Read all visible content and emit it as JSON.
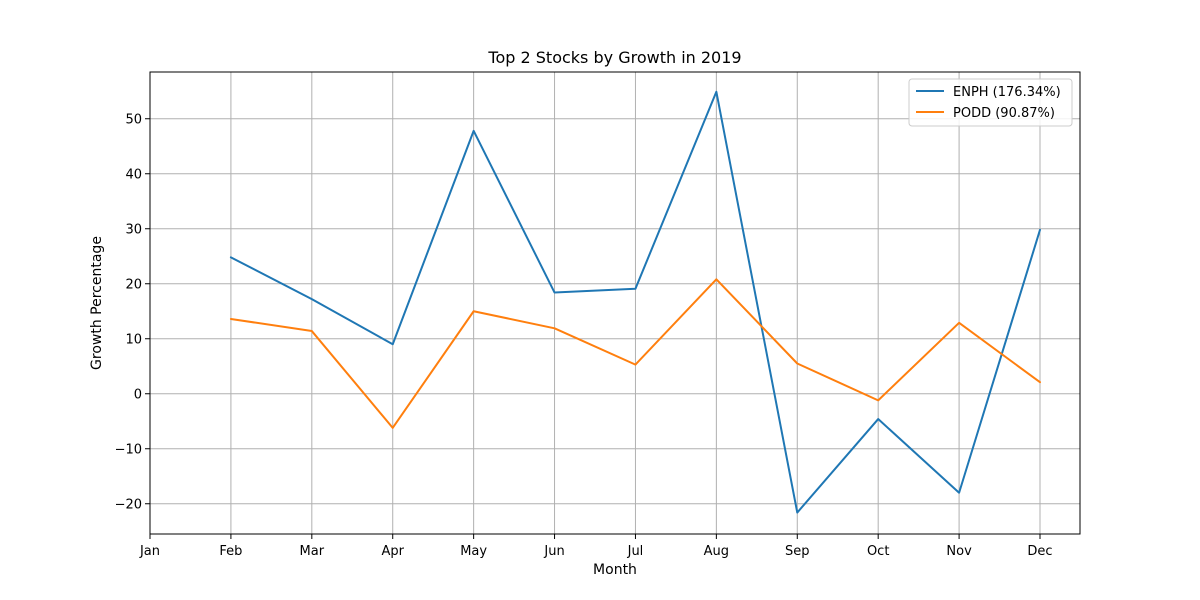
{
  "chart_data": {
    "type": "line",
    "title": "Top 2 Stocks by Growth in 2019",
    "xlabel": "Month",
    "ylabel": "Growth Percentage",
    "categories": [
      "Jan",
      "Feb",
      "Mar",
      "Apr",
      "May",
      "Jun",
      "Jul",
      "Aug",
      "Sep",
      "Oct",
      "Nov",
      "Dec"
    ],
    "ylim": [
      -25.5,
      58.5
    ],
    "yticks": [
      -20,
      -10,
      0,
      10,
      20,
      30,
      40,
      50
    ],
    "ytick_labels": [
      "−20",
      "−10",
      "0",
      "10",
      "20",
      "30",
      "40",
      "50"
    ],
    "grid": true,
    "legend_position": "top-right",
    "series": [
      {
        "name": "ENPH (176.34%)",
        "color": "#1f77b4",
        "values": [
          null,
          24.8,
          17.2,
          9.0,
          47.8,
          18.4,
          19.1,
          54.9,
          -21.6,
          -4.6,
          -18.0,
          29.8
        ]
      },
      {
        "name": "PODD (90.87%)",
        "color": "#ff7f0e",
        "values": [
          null,
          13.6,
          11.4,
          -6.2,
          15.0,
          11.9,
          5.3,
          20.8,
          5.5,
          -1.2,
          12.9,
          2.1
        ]
      }
    ]
  }
}
